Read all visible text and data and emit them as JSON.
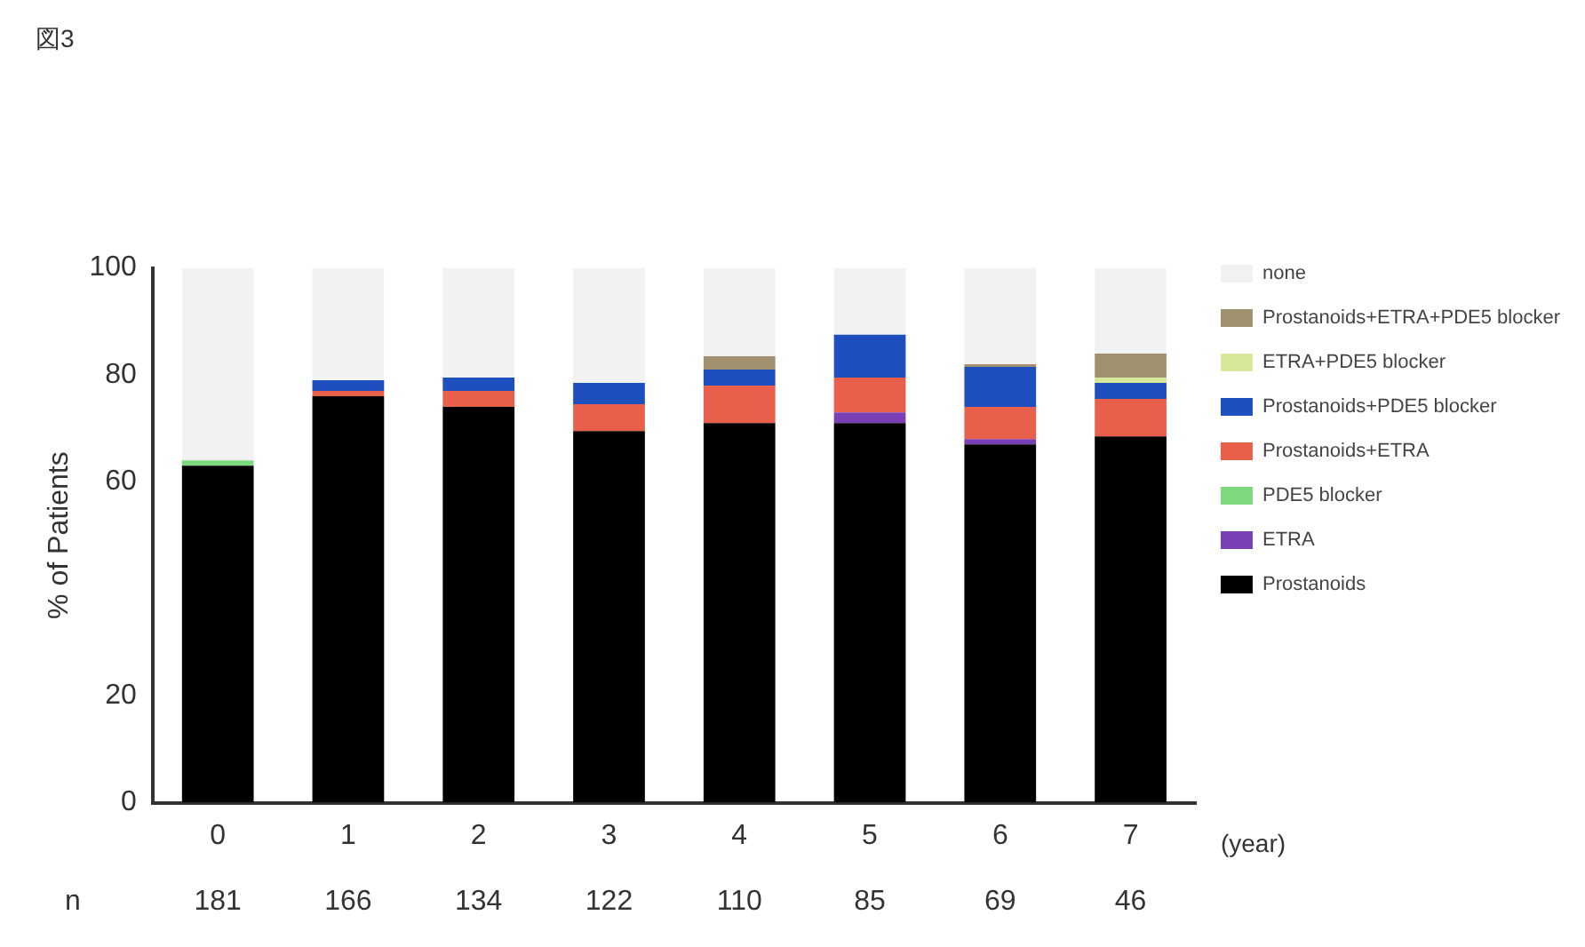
{
  "chart_data": {
    "type": "bar",
    "stacked": true,
    "title": "図3",
    "ylabel": "% of Patients",
    "xlabel": "(year)",
    "categories": [
      "0",
      "1",
      "2",
      "3",
      "4",
      "5",
      "6",
      "7"
    ],
    "ylim": [
      0,
      100
    ],
    "yticks": [
      0,
      20,
      60,
      80,
      100
    ],
    "grid": false,
    "legend": "right",
    "series": [
      {
        "name": "Prostanoids",
        "color": "#000000",
        "values": [
          63,
          76,
          74,
          69.5,
          71,
          71,
          67,
          68.5
        ]
      },
      {
        "name": "ETRA",
        "color": "#7b3fb5",
        "values": [
          0,
          0,
          0,
          0,
          0,
          2,
          1,
          0
        ]
      },
      {
        "name": "PDE5 blocker",
        "color": "#7ed87e",
        "values": [
          1,
          0,
          0,
          0,
          0,
          0,
          0,
          0
        ]
      },
      {
        "name": "Prostanoids+ETRA",
        "color": "#e8604c",
        "values": [
          0,
          1,
          3,
          5,
          7,
          6.5,
          6,
          7
        ]
      },
      {
        "name": "Prostanoids+PDE5 blocker",
        "color": "#1f4fbf",
        "values": [
          0,
          2,
          2.5,
          4,
          3,
          8,
          7.5,
          3
        ]
      },
      {
        "name": "ETRA+PDE5 blocker",
        "color": "#d8e89a",
        "values": [
          0,
          0,
          0,
          0,
          0,
          0,
          0,
          1
        ]
      },
      {
        "name": "Prostanoids+ETRA+PDE5 blocker",
        "color": "#a09070",
        "values": [
          0,
          0,
          0,
          0,
          2.5,
          0,
          0.5,
          4.5
        ]
      },
      {
        "name": "none",
        "color": "#f2f2f2",
        "values": [
          36,
          21,
          20.5,
          21.5,
          16.5,
          12.5,
          18,
          16
        ]
      }
    ],
    "annotations": [
      "n",
      "181",
      "166",
      "134",
      "122",
      "110",
      "85",
      "69",
      "46"
    ]
  }
}
